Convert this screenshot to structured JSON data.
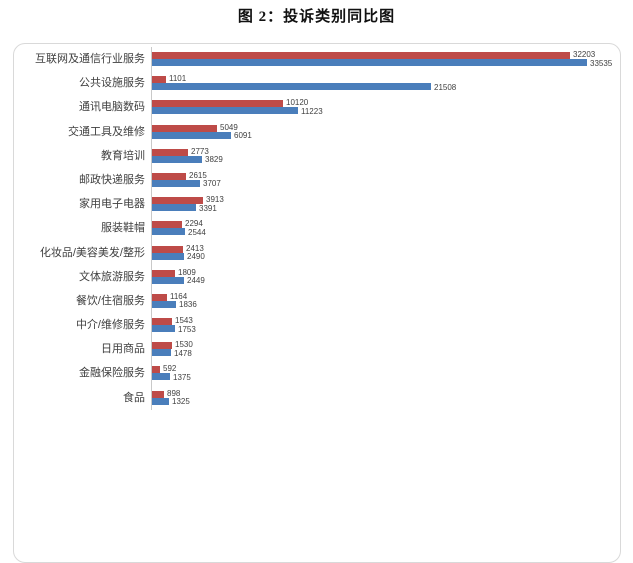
{
  "title": "图 2：投诉类别同比图",
  "colors": {
    "red_series": "#be4b48",
    "blue_series": "#4a7ebb",
    "border": "#d9d9d9",
    "axis_line": "#c9c9c9",
    "label_text": "#404040",
    "title_text": "#111111"
  },
  "chart_data": {
    "type": "bar",
    "orientation": "horizontal",
    "title": "图 2：投诉类别同比图",
    "xlabel": "",
    "ylabel": "",
    "xlim": [
      0,
      35000
    ],
    "gridlines": false,
    "legend_position": "none",
    "value_labels": "outside-end",
    "categories": [
      "互联网及通信行业服务",
      "公共设施服务",
      "通讯电脑数码",
      "交通工具及维修",
      "教育培训",
      "邮政快递服务",
      "家用电子电器",
      "服装鞋帽",
      "化妆品/美容美发/整形",
      "文体旅游服务",
      "餐饮/住宿服务",
      "中介/维修服务",
      "日用商品",
      "金融保险服务",
      "食品"
    ],
    "series": [
      {
        "name": "red",
        "color": "#be4b48",
        "values": [
          32203,
          1101,
          10120,
          5049,
          2773,
          2615,
          3913,
          2294,
          2413,
          1809,
          1164,
          1543,
          1530,
          592,
          898
        ]
      },
      {
        "name": "blue",
        "color": "#4a7ebb",
        "values": [
          33535,
          21508,
          11223,
          6091,
          3829,
          3707,
          3391,
          2544,
          2490,
          2449,
          1836,
          1753,
          1478,
          1375,
          1325
        ]
      }
    ]
  }
}
